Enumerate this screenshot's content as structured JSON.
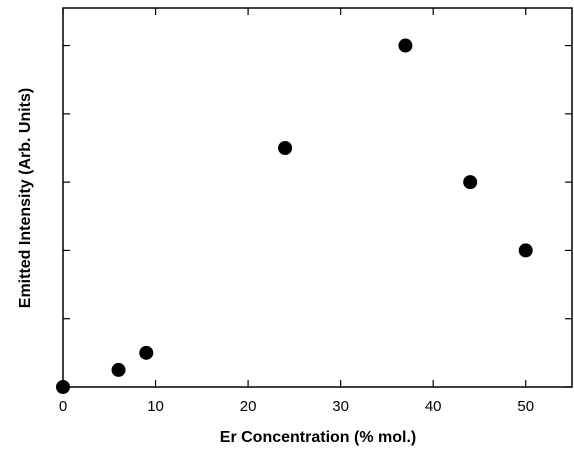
{
  "chart_data": {
    "type": "scatter",
    "xlabel": "Er Concentration (% mol.)",
    "ylabel": "Emitted Intensity (Arb. Units)",
    "x": [
      0,
      6,
      9,
      24,
      37,
      44,
      50
    ],
    "values": [
      0,
      0.25,
      0.5,
      3.5,
      5.0,
      3.0,
      2.0
    ],
    "color": "#000000",
    "xlim": [
      0,
      55
    ],
    "xticks": [
      0,
      10,
      20,
      30,
      40,
      50
    ],
    "ylim": [
      0,
      5.55
    ],
    "yticks": [
      0,
      1,
      2,
      3,
      4,
      5
    ],
    "ytick_labels": false,
    "grid": false
  }
}
